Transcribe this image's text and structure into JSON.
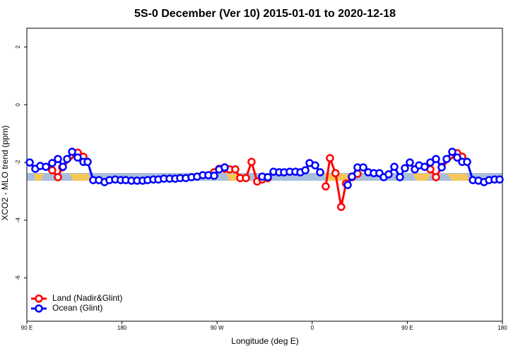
{
  "chart_data": {
    "type": "line",
    "title": "5S-0 December (Ver 10)   2015-01-01 to 2020-12-18",
    "x_label": "Longitude (deg E)",
    "y_label": "XCO2 - MLO trend (ppm)",
    "xlim": [
      90,
      540
    ],
    "xticks": [
      {
        "value": 90,
        "label": "90 E"
      },
      {
        "value": 180,
        "label": "180"
      },
      {
        "value": 270,
        "label": "90 W"
      },
      {
        "value": 360,
        "label": "0"
      },
      {
        "value": 450,
        "label": "90 E"
      },
      {
        "value": 540,
        "label": "180"
      }
    ],
    "ylim": [
      -7.5,
      2.65
    ],
    "yticks": [
      2,
      0,
      -2,
      -4,
      -6
    ],
    "legend": "bottom-left",
    "series": [
      {
        "name": "Land (Nadir&Glint)",
        "color": "#ff0000",
        "x": [
          114,
          119.4,
          123.4,
          138.1,
          143.5,
          null,
          267.2,
          271.9,
          277.2,
          281.9,
          287.2,
          291.9,
          297.3,
          302.6,
          307.9,
          312.7,
          318,
          null,
          372.8,
          376.8,
          382,
          387.4,
          392,
          397.6,
          402.9,
          null,
          471.8,
          477.1,
          482.5,
          497.2,
          501.9
        ],
        "values": [
          -2.27,
          -2.51,
          -2.17,
          -1.66,
          -1.8,
          null,
          -2.34,
          -2.22,
          -2.22,
          -2.24,
          -2.24,
          -2.54,
          -2.54,
          -1.98,
          -2.66,
          -2.59,
          -2.54,
          null,
          -2.83,
          -1.85,
          -2.37,
          -3.54,
          -2.73,
          -2.51,
          -2.39,
          null,
          -2.24,
          -2.51,
          -2.15,
          -1.68,
          -1.8
        ]
      },
      {
        "name": "Ocean (Glint)",
        "color": "#0000ff",
        "x": [
          92.7,
          98,
          102.7,
          108,
          114,
          119.4,
          124.1,
          128.1,
          132.8,
          138.1,
          143.5,
          147.5,
          152.8,
          158.2,
          163.5,
          168.2,
          173.6,
          178.9,
          183.6,
          189,
          194.3,
          199.6,
          204.3,
          209.7,
          214.4,
          219.7,
          225.1,
          230.4,
          235.1,
          240.4,
          245.8,
          251.1,
          256.5,
          261.8,
          267.2,
          271.9,
          277.2,
          null,
          312.7,
          318,
          323.4,
          328.7,
          333.4,
          338.7,
          344.1,
          348.8,
          353.5,
          357.5,
          362.8,
          367.5,
          null,
          393.6,
          397.6,
          402.9,
          408.3,
          413,
          418.3,
          423.6,
          427.7,
          432.3,
          437.7,
          443,
          447.7,
          452.4,
          457.1,
          461.1,
          466.4,
          471.8,
          477.1,
          482.5,
          487.2,
          492.5,
          497.2,
          501.9,
          506.6,
          512,
          517.3,
          522.6,
          527.3,
          532.6,
          537.3
        ],
        "values": [
          -2.0,
          -2.22,
          -2.12,
          -2.15,
          -2.02,
          -1.88,
          -2.15,
          -1.88,
          -1.63,
          -1.83,
          -1.98,
          -1.98,
          -2.61,
          -2.61,
          -2.68,
          -2.61,
          -2.59,
          -2.61,
          -2.61,
          -2.63,
          -2.63,
          -2.63,
          -2.61,
          -2.59,
          -2.59,
          -2.56,
          -2.56,
          -2.56,
          -2.54,
          -2.54,
          -2.51,
          -2.49,
          -2.44,
          -2.44,
          -2.46,
          -2.24,
          -2.17,
          null,
          -2.49,
          -2.51,
          -2.32,
          -2.34,
          -2.34,
          -2.32,
          -2.32,
          -2.34,
          -2.27,
          -2.02,
          -2.1,
          -2.34,
          null,
          -2.78,
          -2.49,
          -2.17,
          -2.17,
          -2.34,
          -2.37,
          -2.37,
          -2.51,
          -2.41,
          -2.15,
          -2.51,
          -2.2,
          -2.0,
          -2.24,
          -2.1,
          -2.15,
          -2.0,
          -1.88,
          -2.17,
          -1.88,
          -1.63,
          -1.83,
          -1.98,
          -1.98,
          -2.61,
          -2.63,
          -2.68,
          -2.61,
          -2.59,
          -2.59
        ]
      }
    ]
  }
}
